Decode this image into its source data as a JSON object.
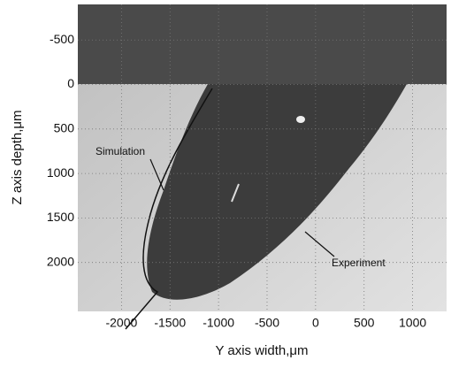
{
  "chart_data": {
    "type": "image",
    "xlabel": "Y axis width,μm",
    "ylabel": "Z axis depth,μm",
    "xlim": [
      -2450,
      1350
    ],
    "xticks": [
      -2000,
      -1500,
      -1000,
      -500,
      0,
      500,
      1000
    ],
    "ylim": [
      2550,
      -900
    ],
    "yticks": [
      -500,
      0,
      500,
      1000,
      1500,
      2000
    ],
    "grid": true,
    "annotations": [
      "Simulation",
      "Experiment"
    ]
  }
}
